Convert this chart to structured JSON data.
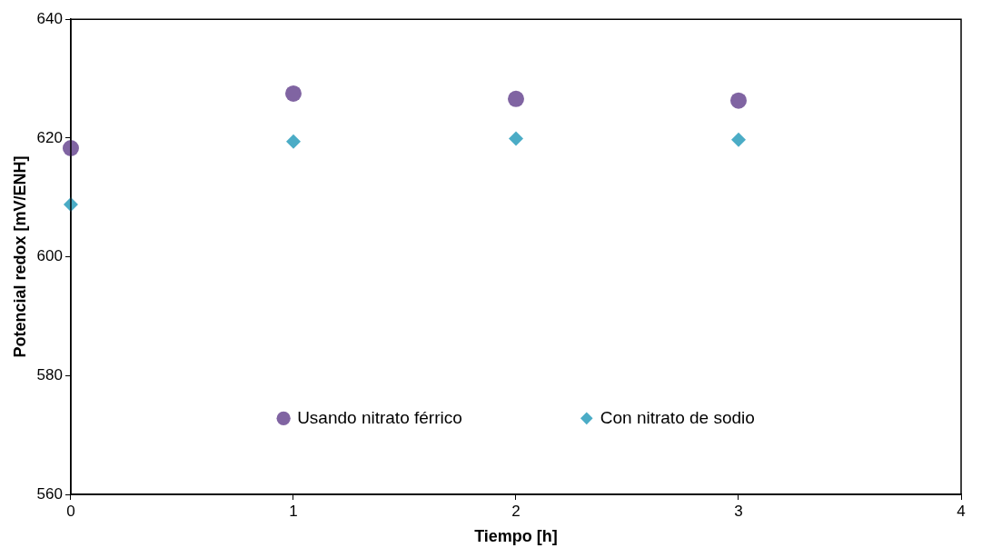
{
  "chart_data": {
    "type": "scatter",
    "xlabel": "Tiempo [h]",
    "ylabel": "Potencial redox [mV/ENH]",
    "xlim": [
      0,
      4
    ],
    "xticks": [
      0,
      1,
      2,
      3,
      4
    ],
    "ylim": [
      560,
      640
    ],
    "yticks": [
      560,
      580,
      600,
      620,
      640
    ],
    "grid": false,
    "legend": "bottom",
    "series": [
      {
        "name": "Usando nitrato férrico",
        "color": "#8064a2",
        "marker": "circle",
        "x": [
          0,
          1,
          2,
          3
        ],
        "values": [
          618.3,
          627.5,
          626.6,
          626.3
        ]
      },
      {
        "name": "Con nitrato de sodio",
        "color": "#4bacc6",
        "marker": "diamond",
        "x": [
          0,
          1,
          2,
          3
        ],
        "values": [
          608.8,
          619.4,
          619.9,
          619.7
        ]
      }
    ]
  }
}
